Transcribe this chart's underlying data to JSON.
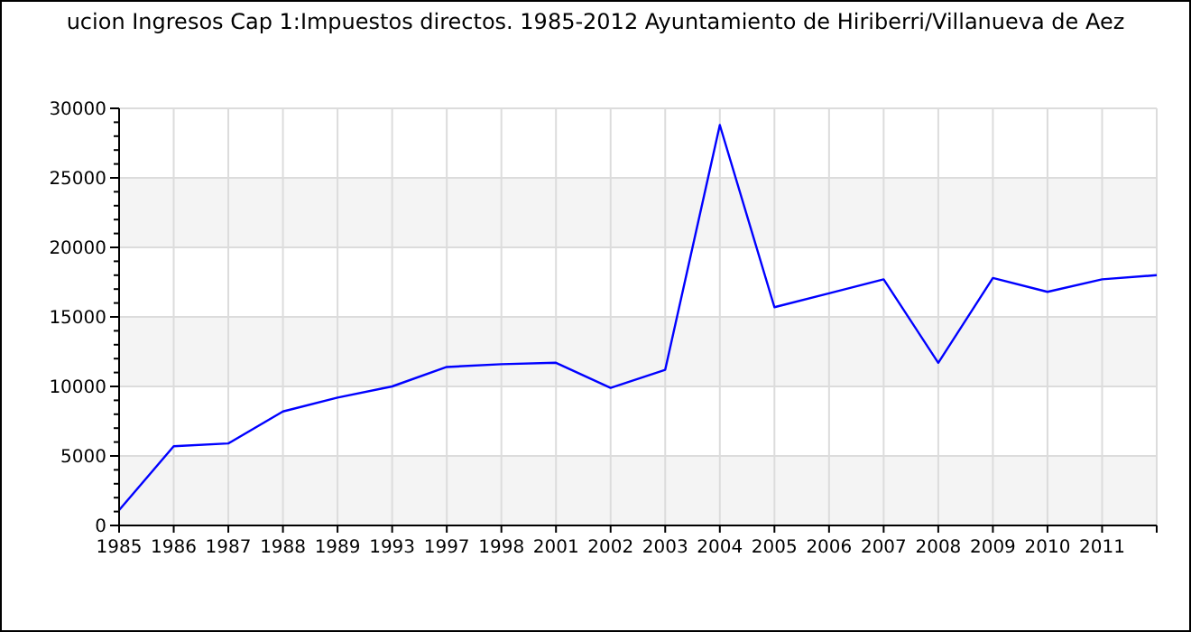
{
  "chart_data": {
    "type": "line",
    "title": "ucion Ingresos Cap 1:Impuestos directos. 1985-2012 Ayuntamiento de Hiriberri/Villanueva de Aez",
    "categories": [
      "1985",
      "1986",
      "1987",
      "1988",
      "1989",
      "1993",
      "1997",
      "1998",
      "2001",
      "2002",
      "2003",
      "2004",
      "2005",
      "2006",
      "2007",
      "2008",
      "2009",
      "2010",
      "2011",
      null
    ],
    "series": [
      {
        "color": "#0000ff",
        "values": [
          1100,
          5700,
          5900,
          8200,
          9200,
          10000,
          11400,
          11600,
          11700,
          9900,
          11200,
          28800,
          15700,
          16700,
          17700,
          11700,
          17800,
          16800,
          17700,
          18000
        ]
      }
    ],
    "ylim": [
      0,
      30000
    ],
    "yticks": [
      0,
      5000,
      10000,
      15000,
      20000,
      25000,
      30000
    ],
    "grid": true,
    "marker": "none",
    "line_style": "solid"
  }
}
